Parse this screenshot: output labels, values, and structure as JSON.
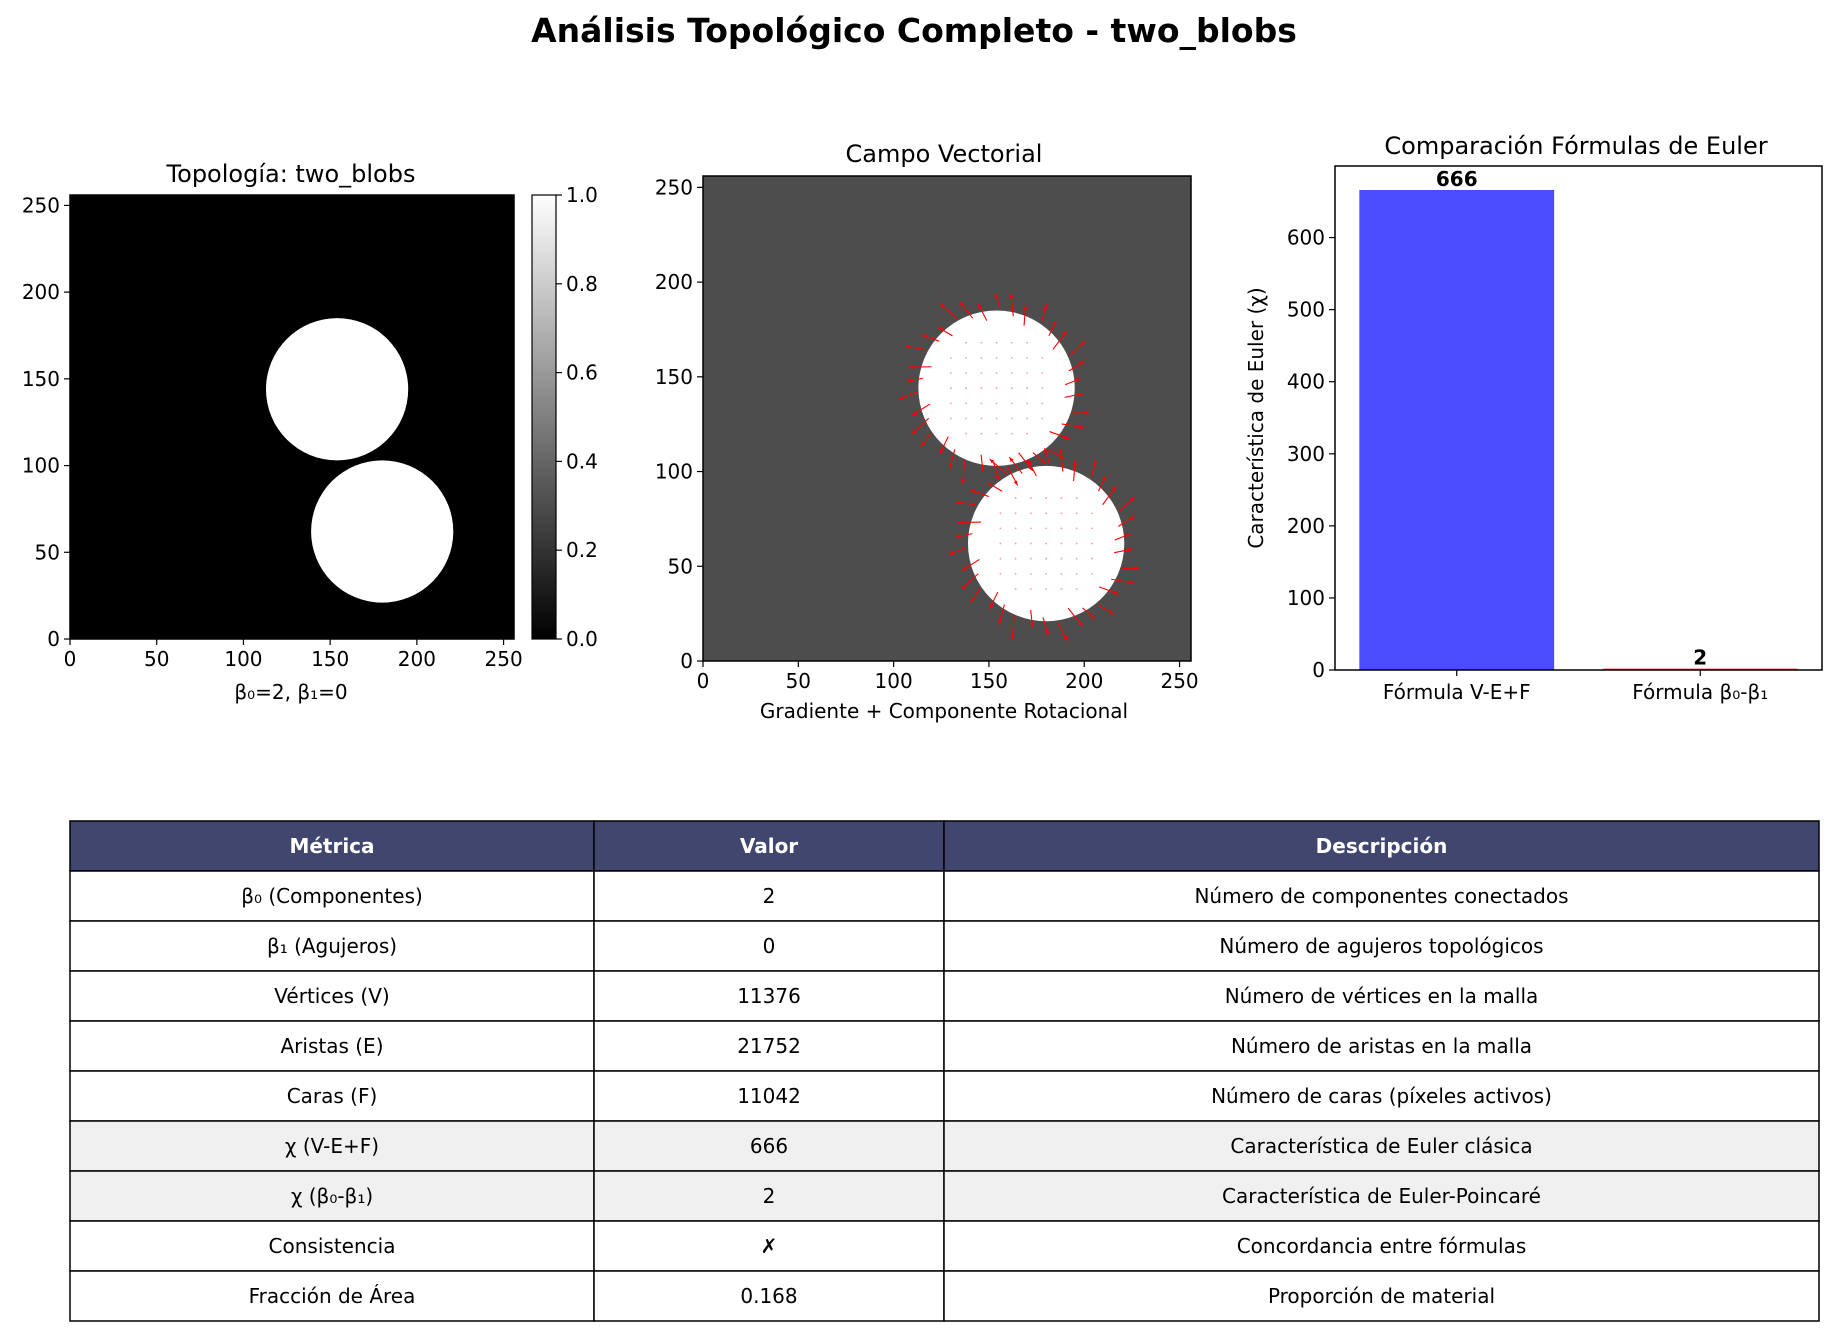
{
  "figure": {
    "title": "Análisis Topológico Completo - two_blobs"
  },
  "colors": {
    "bar_ve_f": "#4b4bff",
    "quiver": "#ff0000",
    "field_bg": "#4d4d4d",
    "blob": "#ffffff",
    "table_header_bg": "#40466e",
    "table_row_highlight": "#f0f0f0"
  },
  "chart_data": [
    {
      "type": "heatmap",
      "title": "Topología: two_blobs",
      "xlabel": "β₀=2, β₁=0",
      "ylabel": "",
      "xlim": [
        0,
        256
      ],
      "ylim": [
        0,
        256
      ],
      "xticks": [
        0,
        50,
        100,
        150,
        200,
        250
      ],
      "yticks": [
        0,
        50,
        100,
        150,
        200,
        250
      ],
      "colormap": "gray",
      "colorbar": {
        "range": [
          0.0,
          1.0
        ],
        "ticks": [
          "0.0",
          "0.2",
          "0.4",
          "0.6",
          "0.8",
          "1.0"
        ]
      },
      "blobs": [
        {
          "cx": 154,
          "cy": 144,
          "r": 41,
          "value": 1.0
        },
        {
          "cx": 180,
          "cy": 62,
          "r": 41,
          "value": 1.0
        }
      ],
      "background_value": 0.0
    },
    {
      "type": "quiver",
      "title": "Campo Vectorial",
      "xlabel": "Gradiente + Componente Rotacional",
      "ylabel": "",
      "xlim": [
        0,
        256
      ],
      "ylim": [
        0,
        256
      ],
      "xticks": [
        0,
        50,
        100,
        150,
        200,
        250
      ],
      "yticks": [
        0,
        50,
        100,
        150,
        200,
        250
      ],
      "blobs": [
        {
          "cx": 154,
          "cy": 144,
          "r": 41
        },
        {
          "cx": 180,
          "cy": 62,
          "r": 41
        }
      ]
    },
    {
      "type": "bar",
      "title": "Comparación Fórmulas de Euler",
      "xlabel": "",
      "ylabel": "Característica de Euler (χ)",
      "categories": [
        "Fórmula V-E+F",
        "Fórmula β₀-β₁"
      ],
      "values": [
        666,
        2
      ],
      "value_labels": [
        "666",
        "2"
      ],
      "ylim": [
        0,
        699.3
      ],
      "yticks": [
        0,
        100,
        200,
        300,
        400,
        500,
        600
      ]
    },
    {
      "type": "table",
      "columns": [
        "Métrica",
        "Valor",
        "Descripción"
      ],
      "rows": [
        {
          "cells": [
            "β₀ (Componentes)",
            "2",
            "Número de componentes conectados"
          ],
          "highlight": false
        },
        {
          "cells": [
            "β₁ (Agujeros)",
            "0",
            "Número de agujeros topológicos"
          ],
          "highlight": false
        },
        {
          "cells": [
            "Vértices (V)",
            "11376",
            "Número de vértices en la malla"
          ],
          "highlight": false
        },
        {
          "cells": [
            "Aristas (E)",
            "21752",
            "Número de aristas en la malla"
          ],
          "highlight": false
        },
        {
          "cells": [
            "Caras (F)",
            "11042",
            "Número de caras (píxeles activos)"
          ],
          "highlight": false
        },
        {
          "cells": [
            "χ (V-E+F)",
            "666",
            "Característica de Euler clásica"
          ],
          "highlight": true
        },
        {
          "cells": [
            "χ (β₀-β₁)",
            "2",
            "Característica de Euler-Poincaré"
          ],
          "highlight": true
        },
        {
          "cells": [
            "Consistencia",
            "✗",
            "Concordancia entre fórmulas"
          ],
          "highlight": false
        },
        {
          "cells": [
            "Fracción de Área",
            "0.168",
            "Proporción de material"
          ],
          "highlight": false
        }
      ]
    }
  ]
}
